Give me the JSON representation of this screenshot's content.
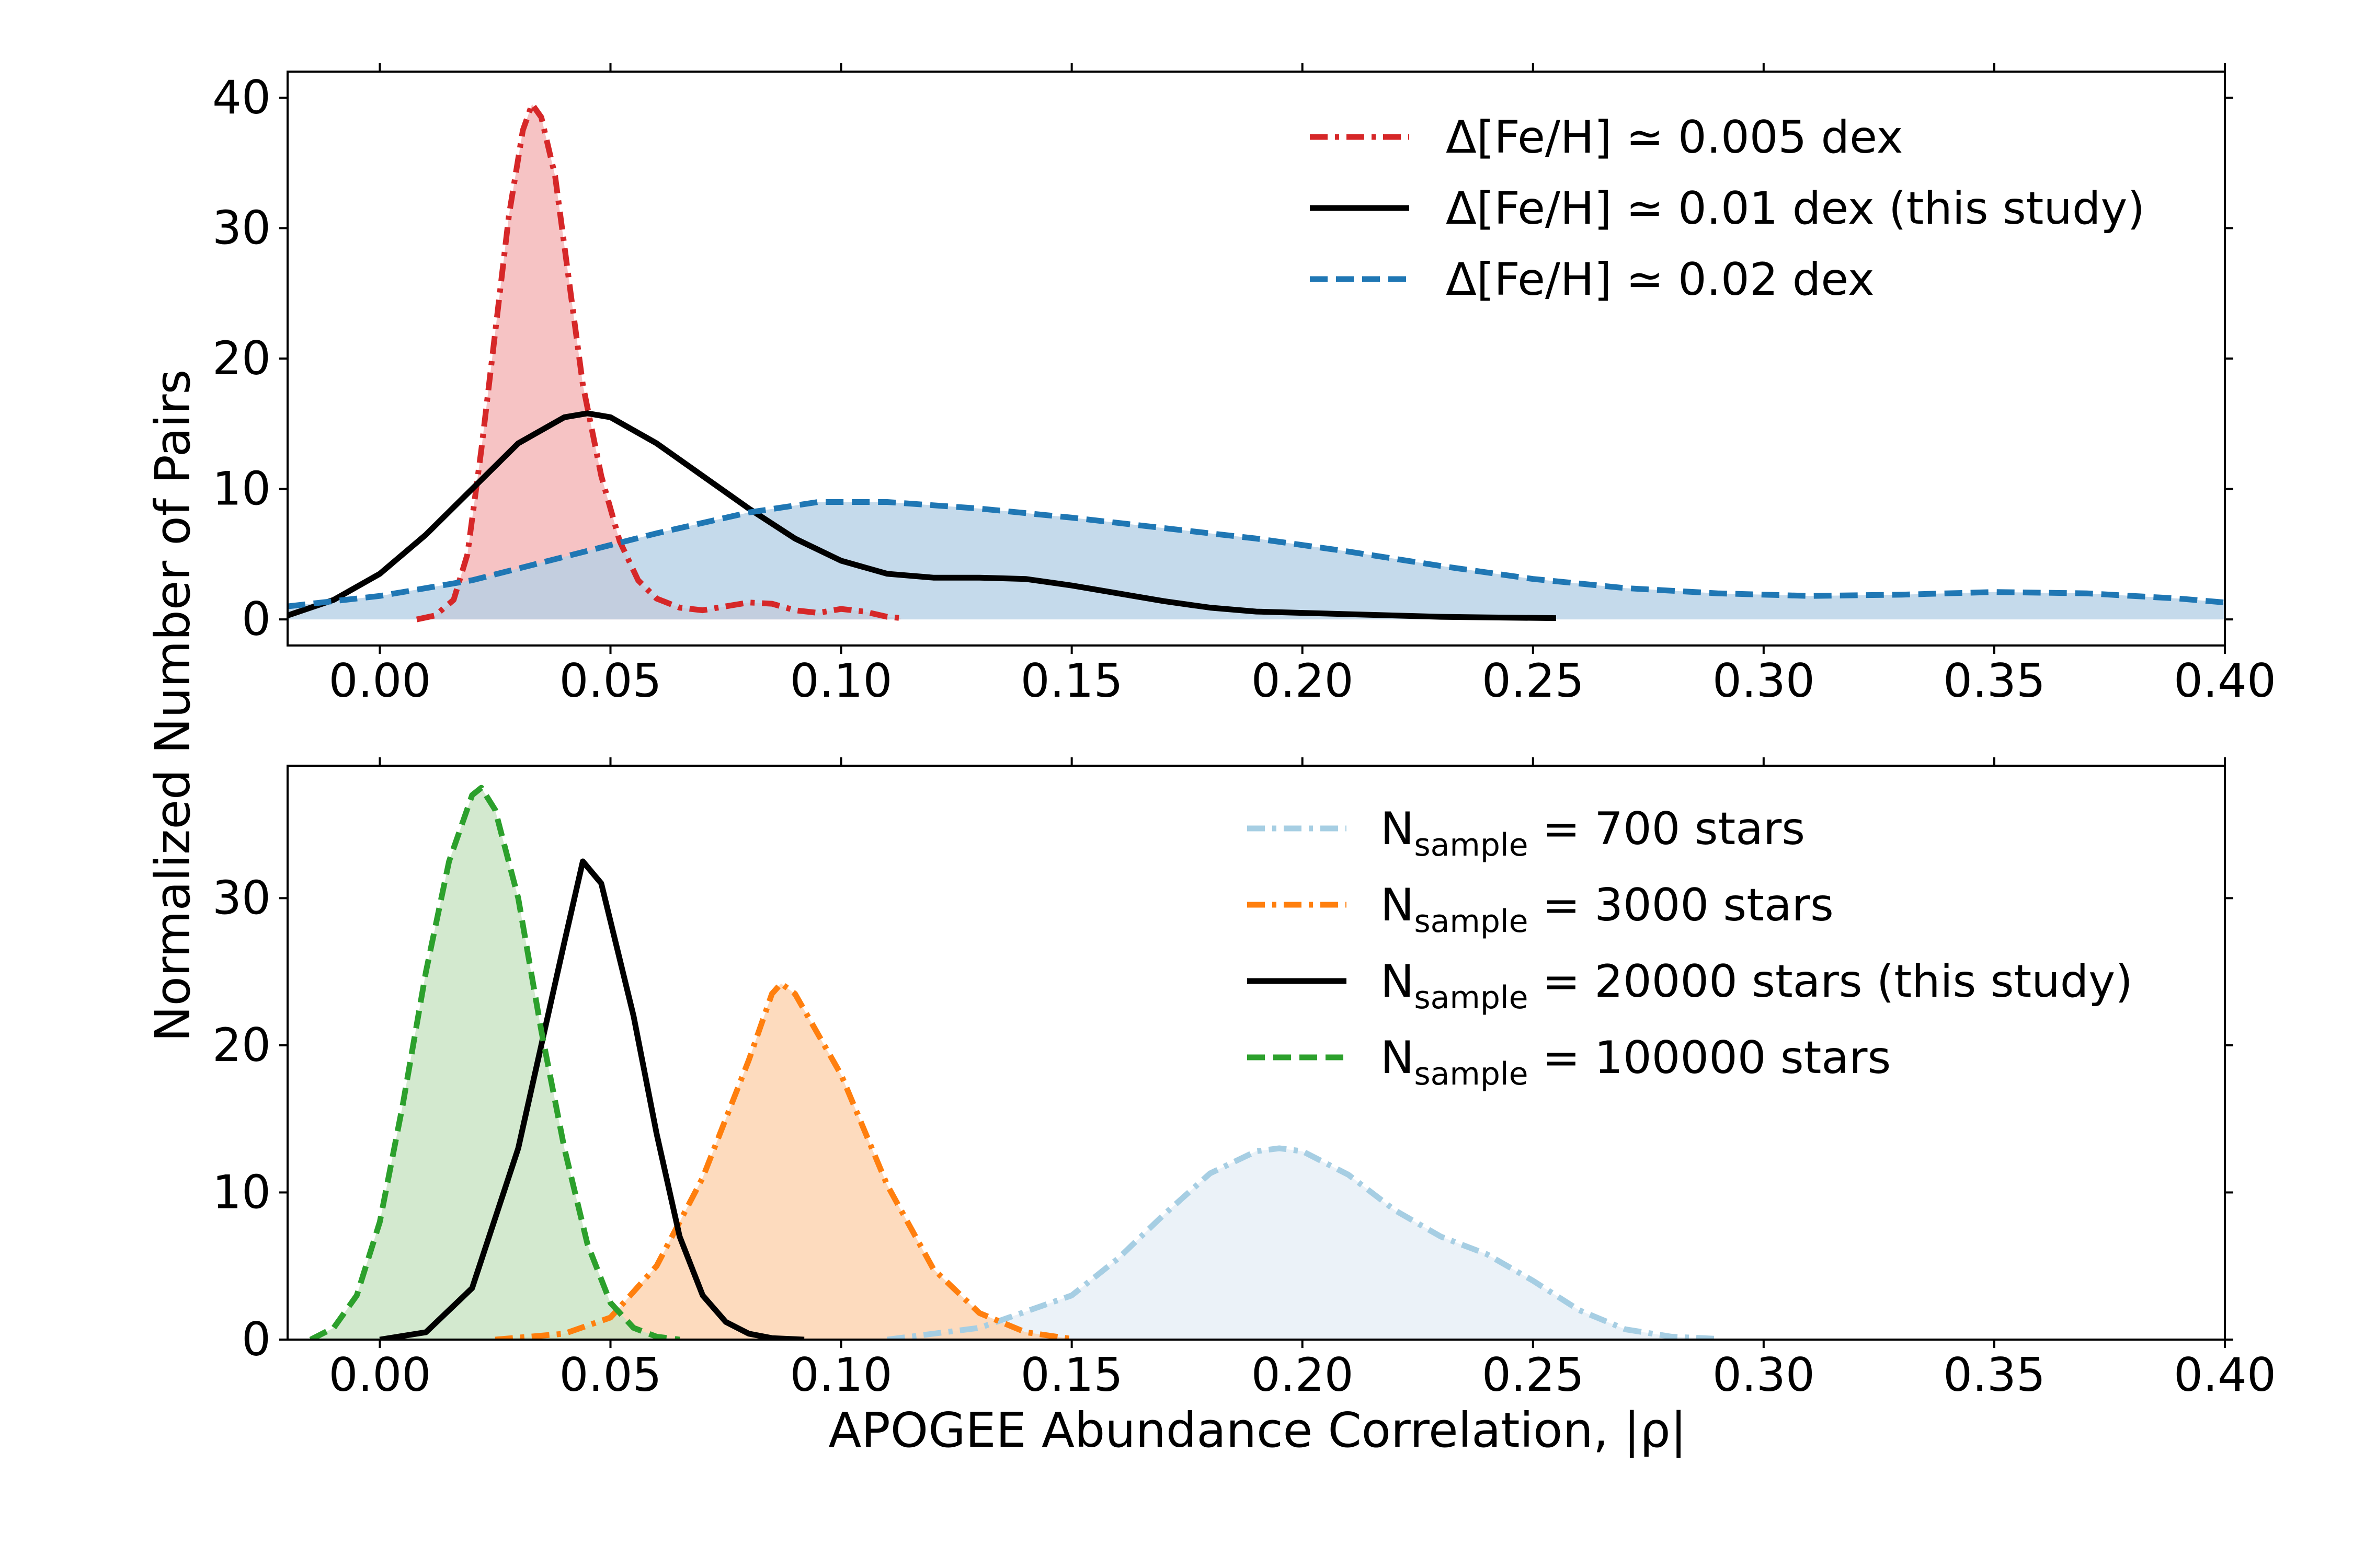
{
  "figure": {
    "ylabel": "Normalized Number of Pairs",
    "xlabel": "APOGEE Abundance Correlation, |ρ|"
  },
  "chart_data": [
    {
      "type": "line",
      "panel": "top",
      "xlim": [
        -0.02,
        0.4
      ],
      "ylim": [
        -2,
        42
      ],
      "x_ticks": [
        0.0,
        0.05,
        0.1,
        0.15,
        0.2,
        0.25,
        0.3,
        0.35,
        0.4
      ],
      "x_tick_labels": [
        "0.00",
        "0.05",
        "0.10",
        "0.15",
        "0.20",
        "0.25",
        "0.30",
        "0.35",
        "0.40"
      ],
      "y_ticks": [
        0,
        10,
        20,
        30,
        40
      ],
      "y_tick_labels": [
        "0",
        "10",
        "20",
        "30",
        "40"
      ],
      "legend": "top-right",
      "series": [
        {
          "name": "red",
          "label_pre": "Δ[Fe/H] ≃ 0.005 dex",
          "label_sub": "",
          "label_post": "",
          "color": "#d62728",
          "fill": "#f4b4b5",
          "dash": "dashdot",
          "points": [
            [
              0.008,
              0.0
            ],
            [
              0.012,
              0.3
            ],
            [
              0.016,
              1.5
            ],
            [
              0.019,
              5
            ],
            [
              0.022,
              13
            ],
            [
              0.025,
              22
            ],
            [
              0.028,
              31
            ],
            [
              0.031,
              37.5
            ],
            [
              0.033,
              39.5
            ],
            [
              0.035,
              38.5
            ],
            [
              0.038,
              34
            ],
            [
              0.041,
              26
            ],
            [
              0.044,
              18
            ],
            [
              0.048,
              11
            ],
            [
              0.052,
              6
            ],
            [
              0.056,
              3
            ],
            [
              0.06,
              1.6
            ],
            [
              0.065,
              0.9
            ],
            [
              0.07,
              0.7
            ],
            [
              0.075,
              1.0
            ],
            [
              0.08,
              1.3
            ],
            [
              0.085,
              1.2
            ],
            [
              0.09,
              0.7
            ],
            [
              0.095,
              0.5
            ],
            [
              0.1,
              0.8
            ],
            [
              0.105,
              0.6
            ],
            [
              0.11,
              0.2
            ],
            [
              0.113,
              0.1
            ]
          ]
        },
        {
          "name": "black",
          "label_pre": "Δ[Fe/H] ≃ 0.01 dex (this study)",
          "label_sub": "",
          "label_post": "",
          "color": "#000000",
          "fill": "",
          "dash": "solid",
          "points": [
            [
              -0.02,
              0.3
            ],
            [
              -0.01,
              1.5
            ],
            [
              0.0,
              3.5
            ],
            [
              0.01,
              6.5
            ],
            [
              0.02,
              10
            ],
            [
              0.03,
              13.5
            ],
            [
              0.04,
              15.5
            ],
            [
              0.045,
              15.8
            ],
            [
              0.05,
              15.5
            ],
            [
              0.06,
              13.5
            ],
            [
              0.07,
              11
            ],
            [
              0.08,
              8.5
            ],
            [
              0.09,
              6.2
            ],
            [
              0.1,
              4.5
            ],
            [
              0.11,
              3.5
            ],
            [
              0.12,
              3.2
            ],
            [
              0.13,
              3.2
            ],
            [
              0.14,
              3.1
            ],
            [
              0.15,
              2.6
            ],
            [
              0.16,
              2.0
            ],
            [
              0.17,
              1.4
            ],
            [
              0.18,
              0.9
            ],
            [
              0.19,
              0.6
            ],
            [
              0.2,
              0.5
            ],
            [
              0.21,
              0.4
            ],
            [
              0.22,
              0.3
            ],
            [
              0.23,
              0.2
            ],
            [
              0.24,
              0.15
            ],
            [
              0.255,
              0.1
            ]
          ]
        },
        {
          "name": "blue",
          "label_pre": "Δ[Fe/H] ≃ 0.02 dex",
          "label_sub": "",
          "label_post": "",
          "color": "#1f77b4",
          "fill": "#b7d1e6",
          "dash": "dashed",
          "points": [
            [
              -0.02,
              1.0
            ],
            [
              0.0,
              1.8
            ],
            [
              0.02,
              3.0
            ],
            [
              0.04,
              4.8
            ],
            [
              0.06,
              6.6
            ],
            [
              0.08,
              8.2
            ],
            [
              0.095,
              9.0
            ],
            [
              0.11,
              9.0
            ],
            [
              0.13,
              8.5
            ],
            [
              0.15,
              7.8
            ],
            [
              0.17,
              7.0
            ],
            [
              0.19,
              6.2
            ],
            [
              0.21,
              5.2
            ],
            [
              0.23,
              4.1
            ],
            [
              0.25,
              3.1
            ],
            [
              0.27,
              2.4
            ],
            [
              0.29,
              2.0
            ],
            [
              0.31,
              1.8
            ],
            [
              0.33,
              1.9
            ],
            [
              0.35,
              2.1
            ],
            [
              0.37,
              2.0
            ],
            [
              0.39,
              1.6
            ],
            [
              0.4,
              1.3
            ]
          ]
        }
      ]
    },
    {
      "type": "line",
      "panel": "bottom",
      "xlim": [
        -0.02,
        0.4
      ],
      "ylim": [
        0,
        39
      ],
      "x_ticks": [
        0.0,
        0.05,
        0.1,
        0.15,
        0.2,
        0.25,
        0.3,
        0.35,
        0.4
      ],
      "x_tick_labels": [
        "0.00",
        "0.05",
        "0.10",
        "0.15",
        "0.20",
        "0.25",
        "0.30",
        "0.35",
        "0.40"
      ],
      "y_ticks": [
        0,
        10,
        20,
        30
      ],
      "y_tick_labels": [
        "0",
        "10",
        "20",
        "30"
      ],
      "legend": "top-right",
      "series": [
        {
          "name": "lightblue",
          "label_pre": "N",
          "label_sub": "sample",
          "label_post": " = 700 stars",
          "color": "#a6cee3",
          "fill": "#e6eff6",
          "dash": "dashdot",
          "points": [
            [
              0.11,
              0.0
            ],
            [
              0.13,
              0.8
            ],
            [
              0.15,
              3.0
            ],
            [
              0.16,
              5.5
            ],
            [
              0.17,
              8.5
            ],
            [
              0.18,
              11.3
            ],
            [
              0.19,
              12.8
            ],
            [
              0.195,
              13.0
            ],
            [
              0.2,
              12.8
            ],
            [
              0.21,
              11.2
            ],
            [
              0.22,
              8.8
            ],
            [
              0.23,
              7.0
            ],
            [
              0.24,
              5.8
            ],
            [
              0.25,
              4.0
            ],
            [
              0.26,
              2.0
            ],
            [
              0.27,
              0.7
            ],
            [
              0.28,
              0.2
            ],
            [
              0.29,
              0.05
            ]
          ]
        },
        {
          "name": "orange",
          "label_pre": "N",
          "label_sub": "sample",
          "label_post": " = 3000 stars",
          "color": "#ff7f0e",
          "fill": "#fdd2ae",
          "dash": "dashdot",
          "points": [
            [
              0.025,
              0.0
            ],
            [
              0.04,
              0.4
            ],
            [
              0.05,
              1.5
            ],
            [
              0.06,
              5.0
            ],
            [
              0.07,
              11
            ],
            [
              0.08,
              19
            ],
            [
              0.085,
              23.5
            ],
            [
              0.087,
              24.2
            ],
            [
              0.09,
              23.5
            ],
            [
              0.1,
              18
            ],
            [
              0.11,
              10.5
            ],
            [
              0.12,
              4.8
            ],
            [
              0.13,
              1.8
            ],
            [
              0.14,
              0.5
            ],
            [
              0.15,
              0.05
            ]
          ]
        },
        {
          "name": "black",
          "label_pre": "N",
          "label_sub": "sample",
          "label_post": " = 20000 stars (this study)",
          "color": "#000000",
          "fill": "",
          "dash": "solid",
          "points": [
            [
              0.0,
              0.0
            ],
            [
              0.01,
              0.5
            ],
            [
              0.02,
              3.5
            ],
            [
              0.03,
              13
            ],
            [
              0.04,
              27
            ],
            [
              0.044,
              32.5
            ],
            [
              0.048,
              31
            ],
            [
              0.055,
              22
            ],
            [
              0.06,
              14
            ],
            [
              0.065,
              7
            ],
            [
              0.07,
              3
            ],
            [
              0.075,
              1.2
            ],
            [
              0.08,
              0.4
            ],
            [
              0.085,
              0.1
            ],
            [
              0.092,
              0.0
            ]
          ]
        },
        {
          "name": "green",
          "label_pre": "N",
          "label_sub": "sample",
          "label_post": " = 100000 stars",
          "color": "#2ca02c",
          "fill": "#c8e4c3",
          "dash": "dashed",
          "points": [
            [
              -0.015,
              0.0
            ],
            [
              -0.01,
              0.8
            ],
            [
              -0.005,
              3.0
            ],
            [
              0.0,
              8.0
            ],
            [
              0.005,
              16
            ],
            [
              0.01,
              25
            ],
            [
              0.015,
              32.5
            ],
            [
              0.02,
              37
            ],
            [
              0.022,
              37.5
            ],
            [
              0.025,
              36
            ],
            [
              0.03,
              30
            ],
            [
              0.035,
              21
            ],
            [
              0.04,
              13
            ],
            [
              0.045,
              6.5
            ],
            [
              0.05,
              2.5
            ],
            [
              0.055,
              0.8
            ],
            [
              0.06,
              0.2
            ],
            [
              0.065,
              0.0
            ]
          ]
        }
      ]
    }
  ]
}
